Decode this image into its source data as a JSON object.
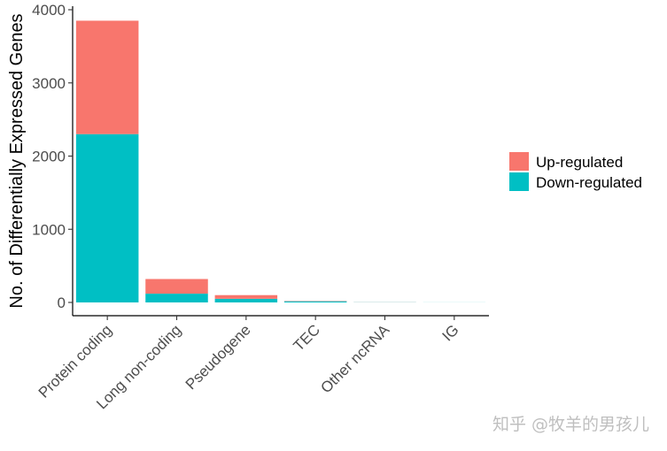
{
  "chart_data": {
    "type": "bar",
    "stacked": true,
    "title": "",
    "xlabel": "",
    "ylabel": "No. of Differentially Expressed Genes",
    "ylim": [
      0,
      4000
    ],
    "yticks": [
      0,
      1000,
      2000,
      3000,
      4000
    ],
    "categories": [
      "Protein coding",
      "Long non-coding",
      "Pseudogene",
      "TEC",
      "Other ncRNA",
      "IG"
    ],
    "series": [
      {
        "name": "Down-regulated",
        "color": "#00BFC4",
        "values": [
          2300,
          120,
          50,
          15,
          2,
          1
        ]
      },
      {
        "name": "Up-regulated",
        "color": "#F8766D",
        "values": [
          1550,
          200,
          50,
          5,
          1,
          0
        ]
      }
    ],
    "legend_order": [
      "Up-regulated",
      "Down-regulated"
    ],
    "legend_position": "right",
    "grid": false
  },
  "watermark": "知乎 @牧羊的男孩儿"
}
